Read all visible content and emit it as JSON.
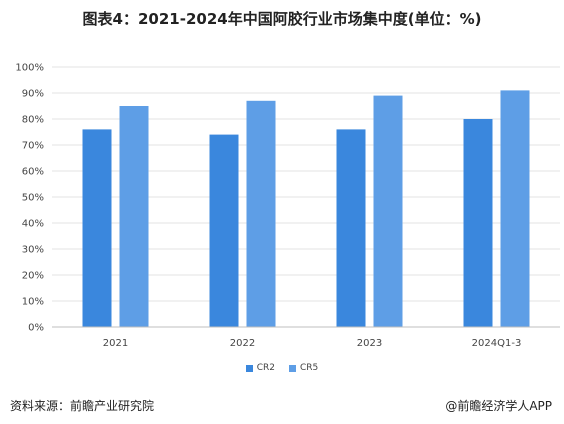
{
  "title": "图表4：2021-2024年中国阿胶行业市场集中度(单位：%)",
  "source": "资料来源：前瞻产业研究院",
  "credit": "@前瞻经济学人APP",
  "colors": {
    "CR2": "#3a87dd",
    "CR5": "#5e9ee6",
    "grid": "#e3e3e3",
    "axis": "#bfbfbf"
  },
  "chart_data": {
    "type": "bar",
    "categories": [
      "2021",
      "2022",
      "2023",
      "2024Q1-3"
    ],
    "series": [
      {
        "name": "CR2",
        "values": [
          76,
          74,
          76,
          80
        ]
      },
      {
        "name": "CR5",
        "values": [
          85,
          87,
          89,
          91
        ]
      }
    ],
    "ylim": [
      0,
      100
    ],
    "yticks": [
      0,
      10,
      20,
      30,
      40,
      50,
      60,
      70,
      80,
      90,
      100
    ],
    "ytick_labels": [
      "0%",
      "10%",
      "20%",
      "30%",
      "40%",
      "50%",
      "60%",
      "70%",
      "80%",
      "90%",
      "100%"
    ],
    "grid": true,
    "legend": "bottom",
    "title": "",
    "xlabel": "",
    "ylabel": ""
  }
}
